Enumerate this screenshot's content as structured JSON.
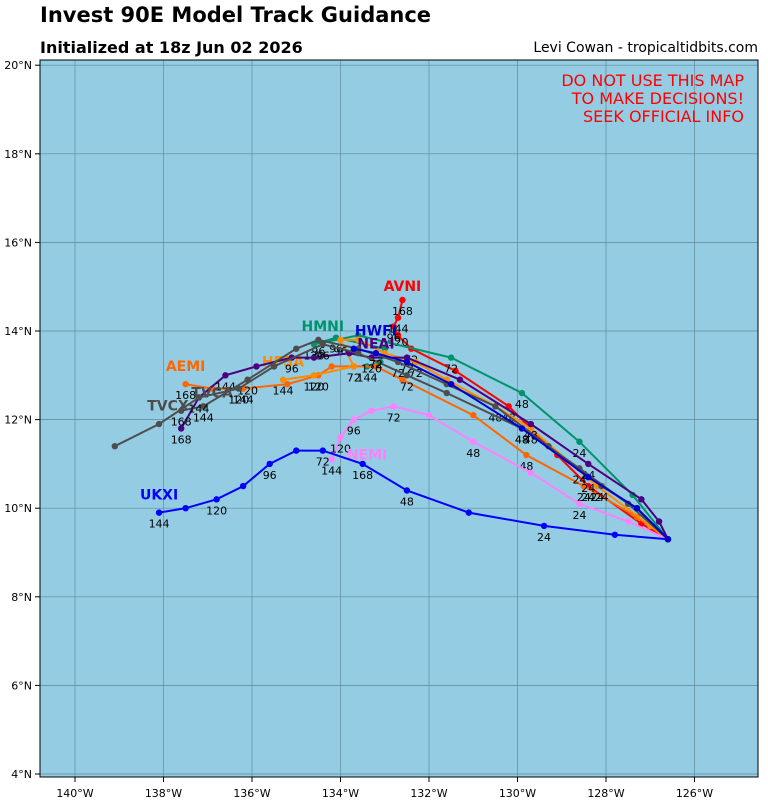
{
  "header": {
    "title": "Invest 90E Model Track Guidance",
    "subtitle": "Initialized at 18z Jun 02 2026",
    "credit": "Levi Cowan - tropicaltidbits.com"
  },
  "warning": {
    "line1": "DO NOT USE THIS MAP",
    "line2": "TO MAKE DECISIONS!",
    "line3": "SEEK OFFICIAL INFO"
  },
  "map": {
    "ocean_color": "#94cde3",
    "grid_color": "#5f8a9a",
    "lon_ticks": [
      "140°W",
      "138°W",
      "136°W",
      "134°W",
      "132°W",
      "130°W",
      "128°W",
      "126°W"
    ],
    "lat_ticks": [
      "4°N",
      "6°N",
      "8°N",
      "10°N",
      "12°N",
      "14°N",
      "16°N",
      "18°N",
      "20°N"
    ]
  },
  "models": [
    {
      "name": "AVNI",
      "color": "#ff0000",
      "points": [
        [
          -126.6,
          9.3
        ],
        [
          -127.2,
          9.65
        ],
        [
          -128.4,
          10.5
        ],
        [
          -129.1,
          11.2
        ],
        [
          -130.2,
          12.3
        ],
        [
          -131.4,
          13.1
        ],
        [
          -132.4,
          13.6
        ],
        [
          -132.7,
          13.9
        ],
        [
          -132.8,
          14.1
        ],
        [
          -132.7,
          14.3
        ],
        [
          -132.6,
          14.7
        ]
      ],
      "labels": [
        [
          "24",
          -128.4,
          10.5
        ],
        [
          "48",
          -130.2,
          12.3
        ],
        [
          "72",
          -132.4,
          13.6
        ],
        [
          "96",
          -132.8,
          14.1
        ],
        [
          "120",
          -132.7,
          14.0
        ],
        [
          "144",
          -132.7,
          14.3
        ],
        [
          "168",
          -132.6,
          14.7
        ]
      ],
      "name_pos": [
        -132.6,
        14.9
      ]
    },
    {
      "name": "HMNI",
      "color": "#00936b",
      "points": [
        [
          -126.6,
          9.3
        ],
        [
          -127.4,
          10.3
        ],
        [
          -128.6,
          11.5
        ],
        [
          -129.9,
          12.6
        ],
        [
          -131.5,
          13.4
        ],
        [
          -133.6,
          13.9
        ],
        [
          -134.6,
          13.7
        ],
        [
          -134.1,
          13.85
        ],
        [
          -133.0,
          13.6
        ],
        [
          -133.1,
          13.3
        ],
        [
          -133.4,
          13.2
        ]
      ],
      "labels": [
        [
          "24",
          -128.6,
          11.5
        ],
        [
          "48",
          -129.9,
          12.6
        ],
        [
          "72",
          -131.5,
          13.4
        ],
        [
          "96",
          -134.1,
          13.85
        ],
        [
          "120",
          -134.6,
          13.7
        ],
        [
          "144",
          -133.4,
          13.2
        ]
      ],
      "name_pos": [
        -134.4,
        14.0
      ]
    },
    {
      "name": "AEMI",
      "color": "#ff6600",
      "points": [
        [
          -126.6,
          9.3
        ],
        [
          -127.3,
          9.8
        ],
        [
          -128.5,
          10.5
        ],
        [
          -129.8,
          11.2
        ],
        [
          -131.0,
          12.1
        ],
        [
          -132.6,
          12.9
        ],
        [
          -133.2,
          13.2
        ],
        [
          -133.7,
          13.2
        ],
        [
          -134.2,
          13.2
        ],
        [
          -134.5,
          13.0
        ],
        [
          -135.2,
          12.8
        ],
        [
          -136.2,
          12.7
        ],
        [
          -136.9,
          12.7
        ],
        [
          -137.5,
          12.8
        ]
      ],
      "labels": [
        [
          "24",
          -128.5,
          10.5
        ],
        [
          "48",
          -129.8,
          11.2
        ],
        [
          "72",
          -133.7,
          13.2
        ],
        [
          "120",
          -134.5,
          13.0
        ],
        [
          "144",
          -136.2,
          12.7
        ],
        [
          "168",
          -137.5,
          12.8
        ]
      ],
      "name_pos": [
        -137.5,
        13.1
      ]
    },
    {
      "name": "HFSA",
      "color": "#ff8c00",
      "points": [
        [
          -126.6,
          9.3
        ],
        [
          -127.0,
          9.6
        ],
        [
          -128.2,
          10.5
        ],
        [
          -129.7,
          11.8
        ],
        [
          -130.5,
          12.3
        ],
        [
          -131.6,
          12.9
        ],
        [
          -132.3,
          13.3
        ],
        [
          -133.0,
          13.5
        ],
        [
          -133.6,
          13.8
        ],
        [
          -134.0,
          13.8
        ],
        [
          -133.7,
          13.2
        ],
        [
          -134.6,
          13.0
        ],
        [
          -135.3,
          12.9
        ]
      ],
      "labels": [
        [
          "24",
          -128.2,
          10.5
        ],
        [
          "48",
          -129.7,
          11.8
        ],
        [
          "72",
          -132.3,
          13.3
        ],
        [
          "96",
          -134.0,
          13.8
        ],
        [
          "120",
          -134.6,
          13.0
        ],
        [
          "144",
          -135.3,
          12.9
        ]
      ],
      "name_pos": [
        -135.3,
        13.2
      ]
    },
    {
      "name": "NEMI",
      "color": "#ff80ff",
      "points": [
        [
          -126.6,
          9.3
        ],
        [
          -127.5,
          9.7
        ],
        [
          -128.6,
          10.1
        ],
        [
          -129.7,
          10.8
        ],
        [
          -131.0,
          11.5
        ],
        [
          -132.0,
          12.1
        ],
        [
          -132.8,
          12.3
        ],
        [
          -133.3,
          12.2
        ],
        [
          -133.7,
          12.0
        ],
        [
          -134.0,
          11.6
        ],
        [
          -134.2,
          11.1
        ]
      ],
      "labels": [
        [
          "24",
          -128.6,
          10.1
        ],
        [
          "48",
          -131.0,
          11.5
        ],
        [
          "72",
          -132.8,
          12.3
        ],
        [
          "96",
          -133.7,
          12.0
        ],
        [
          "120",
          -134.0,
          11.6
        ],
        [
          "144",
          -134.2,
          11.1
        ]
      ],
      "name_pos": [
        -133.4,
        11.1
      ]
    },
    {
      "name": "UKXI",
      "color": "#0000ff",
      "points": [
        [
          -126.6,
          9.3
        ],
        [
          -127.8,
          9.4
        ],
        [
          -129.4,
          9.6
        ],
        [
          -131.1,
          9.9
        ],
        [
          -132.5,
          10.4
        ],
        [
          -133.5,
          11.0
        ],
        [
          -134.4,
          11.3
        ],
        [
          -135.0,
          11.3
        ],
        [
          -135.6,
          11.0
        ],
        [
          -136.2,
          10.5
        ],
        [
          -136.8,
          10.2
        ],
        [
          -137.5,
          10.0
        ],
        [
          -138.1,
          9.9
        ]
      ],
      "labels": [
        [
          "24",
          -129.4,
          9.6
        ],
        [
          "48",
          -132.5,
          10.4
        ],
        [
          "72",
          -134.4,
          11.3
        ],
        [
          "96",
          -135.6,
          11.0
        ],
        [
          "120",
          -136.8,
          10.2
        ],
        [
          "144",
          -138.1,
          9.9
        ],
        [
          "168",
          -133.5,
          11.0
        ]
      ],
      "name_pos": [
        -138.1,
        10.2
      ]
    },
    {
      "name": "NEAI",
      "color": "#4b0082",
      "points": [
        [
          -126.6,
          9.3
        ],
        [
          -126.8,
          9.7
        ],
        [
          -127.2,
          10.2
        ],
        [
          -128.4,
          11.0
        ],
        [
          -129.7,
          11.9
        ],
        [
          -131.3,
          12.9
        ],
        [
          -132.5,
          13.4
        ],
        [
          -133.3,
          13.4
        ],
        [
          -133.8,
          13.5
        ],
        [
          -134.6,
          13.4
        ],
        [
          -135.1,
          13.4
        ],
        [
          -135.9,
          13.2
        ],
        [
          -136.6,
          13.0
        ],
        [
          -137.2,
          12.5
        ],
        [
          -137.6,
          11.8
        ]
      ],
      "labels": [
        [
          "24",
          -128.4,
          11.0
        ],
        [
          "48",
          -129.7,
          11.9
        ],
        [
          "72",
          -132.5,
          13.4
        ],
        [
          "96",
          -135.1,
          13.4
        ],
        [
          "120",
          -133.3,
          13.4
        ],
        [
          "144",
          -136.6,
          13.0
        ],
        [
          "168",
          -137.6,
          11.8
        ]
      ],
      "name_pos": [
        -133.2,
        13.6
      ]
    },
    {
      "name": "TVCA",
      "color": "#4d4d4d",
      "points": [
        [
          -126.6,
          9.3
        ],
        [
          -127.3,
          10.0
        ],
        [
          -128.1,
          10.5
        ],
        [
          -129.3,
          11.4
        ],
        [
          -130.5,
          12.3
        ],
        [
          -131.6,
          12.8
        ],
        [
          -132.7,
          13.3
        ],
        [
          -133.6,
          13.6
        ],
        [
          -134.5,
          13.8
        ],
        [
          -135.0,
          13.6
        ],
        [
          -136.1,
          12.9
        ],
        [
          -137.1,
          12.3
        ],
        [
          -137.6,
          12.2
        ]
      ],
      "labels": [
        [
          "24",
          -128.1,
          10.5
        ],
        [
          "48",
          -130.5,
          12.3
        ],
        [
          "72",
          -132.7,
          13.3
        ],
        [
          "96",
          -134.5,
          13.8
        ],
        [
          "120",
          -136.1,
          12.9
        ],
        [
          "144",
          -137.1,
          12.3
        ],
        [
          "168",
          -137.6,
          12.2
        ]
      ],
      "name_pos": [
        -136.9,
        12.5
      ]
    },
    {
      "name": "TVCX",
      "color": "#4d4d4d",
      "points": [
        [
          -126.6,
          9.3
        ],
        [
          -127.5,
          10.1
        ],
        [
          -128.6,
          10.9
        ],
        [
          -129.9,
          11.8
        ],
        [
          -131.6,
          12.6
        ],
        [
          -132.5,
          13.0
        ],
        [
          -133.6,
          13.5
        ],
        [
          -134.4,
          13.7
        ],
        [
          -135.5,
          13.2
        ],
        [
          -136.3,
          12.7
        ],
        [
          -137.2,
          12.5
        ],
        [
          -138.1,
          11.9
        ],
        [
          -139.1,
          11.4
        ]
      ],
      "labels": [
        [
          "24",
          -128.6,
          10.9
        ],
        [
          "48",
          -129.9,
          11.8
        ],
        [
          "72",
          -132.5,
          13.0
        ],
        [
          "96",
          -134.4,
          13.7
        ],
        [
          "120",
          -136.3,
          12.7
        ],
        [
          "144",
          -137.2,
          12.5
        ]
      ],
      "name_pos": [
        -137.9,
        12.2
      ]
    },
    {
      "name": "HWFI",
      "color": "#0000cd",
      "points": [
        [
          -126.6,
          9.3
        ],
        [
          -127.3,
          10.0
        ],
        [
          -128.4,
          10.7
        ],
        [
          -129.9,
          11.8
        ],
        [
          -131.5,
          12.8
        ],
        [
          -132.5,
          13.3
        ],
        [
          -133.2,
          13.5
        ],
        [
          -133.7,
          13.6
        ]
      ],
      "labels": [
        [
          "24",
          -128.4,
          10.7
        ],
        [
          "48",
          -129.9,
          11.8
        ],
        [
          "72",
          -133.2,
          13.5
        ]
      ],
      "name_pos": [
        -133.2,
        13.9
      ]
    }
  ]
}
